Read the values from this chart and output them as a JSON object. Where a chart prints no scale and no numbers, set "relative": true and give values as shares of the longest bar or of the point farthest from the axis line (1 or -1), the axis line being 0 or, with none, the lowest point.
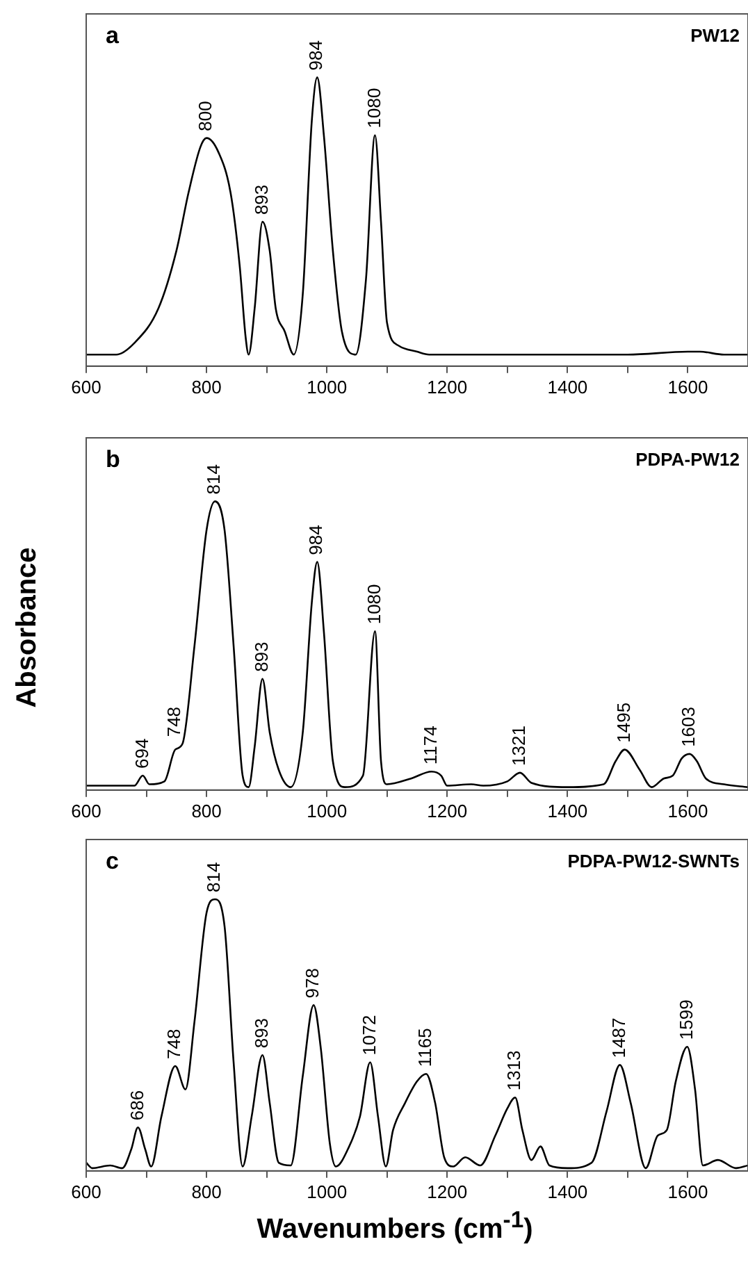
{
  "chart_data": [
    {
      "type": "line",
      "relative": true,
      "tick_labels": "x",
      "grid": false,
      "legend": false,
      "marker": "none",
      "line_style": "solid",
      "xlim": [
        600,
        1700
      ],
      "xticks": [
        600,
        {
          "value": 700,
          "label": null
        },
        800,
        {
          "value": 900,
          "label": null
        },
        1000,
        {
          "value": 1100,
          "label": null
        },
        1200,
        {
          "value": 1300,
          "label": null
        },
        1400,
        {
          "value": 1500,
          "label": null
        },
        1600
      ],
      "series": [
        {
          "color": "#000000",
          "x": [
            600,
            650,
            680,
            720,
            750,
            770,
            790,
            800,
            820,
            840,
            855,
            865,
            870,
            880,
            893,
            905,
            915,
            930,
            945,
            960,
            975,
            984,
            995,
            1010,
            1025,
            1048,
            1065,
            1080,
            1090,
            1100,
            1120,
            1150,
            1170,
            1500,
            1600,
            1620,
            1660,
            1700
          ],
          "values": [
            0.04,
            0.04,
            0.08,
            0.2,
            0.4,
            0.6,
            0.76,
            0.79,
            0.74,
            0.6,
            0.35,
            0.1,
            0.04,
            0.2,
            0.5,
            0.4,
            0.2,
            0.12,
            0.04,
            0.25,
            0.85,
            1,
            0.8,
            0.4,
            0.12,
            0.04,
            0.3,
            0.8,
            0.5,
            0.15,
            0.07,
            0.05,
            0.04,
            0.04,
            0.05,
            0.05,
            0.04,
            0.04
          ]
        }
      ],
      "annotations": [
        "a",
        "PW12",
        {
          "text": "800",
          "x": 800,
          "y": 0.79
        },
        {
          "text": "893",
          "x": 893,
          "y": 0.5
        },
        {
          "text": "984",
          "x": 984,
          "y": 1
        },
        {
          "text": "1080",
          "x": 1080,
          "y": 0.8
        }
      ]
    },
    {
      "type": "line",
      "relative": true,
      "tick_labels": "x",
      "grid": false,
      "legend": false,
      "marker": "none",
      "line_style": "solid",
      "ylabel": "Absorbance",
      "xlim": [
        600,
        1700
      ],
      "xticks": [
        600,
        {
          "value": 700,
          "label": null
        },
        800,
        {
          "value": 900,
          "label": null
        },
        1000,
        {
          "value": 1100,
          "label": null
        },
        1200,
        {
          "value": 1300,
          "label": null
        },
        1400,
        {
          "value": 1500,
          "label": null
        },
        1600
      ],
      "series": [
        {
          "color": "#000000",
          "x": [
            600,
            680,
            694,
            705,
            730,
            748,
            760,
            780,
            800,
            814,
            830,
            845,
            860,
            870,
            880,
            893,
            905,
            920,
            940,
            960,
            975,
            984,
            995,
            1010,
            1030,
            1060,
            1080,
            1090,
            1100,
            1140,
            1174,
            1190,
            1200,
            1240,
            1260,
            1300,
            1321,
            1340,
            1400,
            1460,
            1480,
            1495,
            1520,
            1540,
            1560,
            1575,
            1590,
            1603,
            1615,
            1630,
            1660,
            1700
          ],
          "values": [
            0.015,
            0.015,
            0.05,
            0.02,
            0.03,
            0.14,
            0.16,
            0.5,
            0.9,
            1,
            0.9,
            0.5,
            0.05,
            0.01,
            0.15,
            0.385,
            0.2,
            0.07,
            0.01,
            0.2,
            0.65,
            0.79,
            0.55,
            0.1,
            0.01,
            0.05,
            0.55,
            0.1,
            0.02,
            0.04,
            0.064,
            0.05,
            0.015,
            0.02,
            0.015,
            0.03,
            0.06,
            0.025,
            0.01,
            0.02,
            0.1,
            0.14,
            0.07,
            0.01,
            0.04,
            0.05,
            0.11,
            0.125,
            0.1,
            0.04,
            0.02,
            0.01
          ]
        }
      ],
      "annotations": [
        "b",
        "PDPA-PW12",
        {
          "text": "694",
          "x": 694,
          "y": 0.05
        },
        {
          "text": "748",
          "x": 748,
          "y": 0.16
        },
        {
          "text": "814",
          "x": 814,
          "y": 1
        },
        {
          "text": "893",
          "x": 893,
          "y": 0.385
        },
        {
          "text": "984",
          "x": 984,
          "y": 0.79
        },
        {
          "text": "1080",
          "x": 1080,
          "y": 0.55
        },
        {
          "text": "1174",
          "x": 1174,
          "y": 0.064
        },
        {
          "text": "1321",
          "x": 1321,
          "y": 0.06
        },
        {
          "text": "1495",
          "x": 1495,
          "y": 0.14
        },
        {
          "text": "1603",
          "x": 1603,
          "y": 0.125
        }
      ]
    },
    {
      "type": "line",
      "relative": true,
      "tick_labels": "x",
      "grid": false,
      "legend": false,
      "marker": "none",
      "line_style": "solid",
      "xlabel": "Wavenumbers (cm$^{-1}$)",
      "xlim": [
        600,
        1700
      ],
      "xticks": [
        600,
        {
          "value": 700,
          "label": null
        },
        800,
        {
          "value": 900,
          "label": null
        },
        1000,
        {
          "value": 1100,
          "label": null
        },
        1200,
        {
          "value": 1300,
          "label": null
        },
        1400,
        {
          "value": 1500,
          "label": null
        },
        1600
      ],
      "series": [
        {
          "color": "#000000",
          "x": [
            600,
            610,
            640,
            660,
            675,
            686,
            698,
            708,
            725,
            748,
            765,
            780,
            800,
            814,
            830,
            845,
            860,
            875,
            893,
            905,
            920,
            940,
            960,
            978,
            990,
            1005,
            1015,
            1035,
            1055,
            1072,
            1085,
            1098,
            1110,
            1130,
            1150,
            1165,
            1180,
            1195,
            1210,
            1230,
            1255,
            1280,
            1300,
            1313,
            1325,
            1340,
            1355,
            1370,
            1400,
            1440,
            1465,
            1487,
            1505,
            1530,
            1550,
            1565,
            1580,
            1599,
            1612,
            1625,
            1650,
            1680,
            1700
          ],
          "values": [
            0.03,
            0.01,
            0.02,
            0.01,
            0.08,
            0.16,
            0.08,
            0.016,
            0.2,
            0.386,
            0.3,
            0.55,
            0.95,
            1,
            0.9,
            0.4,
            0.016,
            0.2,
            0.426,
            0.25,
            0.03,
            0.02,
            0.35,
            0.61,
            0.45,
            0.1,
            0.016,
            0.08,
            0.2,
            0.4,
            0.2,
            0.016,
            0.15,
            0.25,
            0.33,
            0.357,
            0.25,
            0.05,
            0.016,
            0.05,
            0.02,
            0.13,
            0.23,
            0.27,
            0.15,
            0.04,
            0.09,
            0.02,
            0.01,
            0.03,
            0.22,
            0.39,
            0.25,
            0.01,
            0.13,
            0.15,
            0.33,
            0.457,
            0.3,
            0.02,
            0.04,
            0.01,
            0.02
          ]
        }
      ],
      "annotations": [
        "c",
        "PDPA-PW12-SWNTs",
        {
          "text": "686",
          "x": 686,
          "y": 0.16
        },
        {
          "text": "748",
          "x": 748,
          "y": 0.386
        },
        {
          "text": "814",
          "x": 814,
          "y": 1
        },
        {
          "text": "893",
          "x": 893,
          "y": 0.426
        },
        {
          "text": "978",
          "x": 978,
          "y": 0.61
        },
        {
          "text": "1072",
          "x": 1072,
          "y": 0.4
        },
        {
          "text": "1165",
          "x": 1165,
          "y": 0.357
        },
        {
          "text": "1313",
          "x": 1313,
          "y": 0.27
        },
        {
          "text": "1487",
          "x": 1487,
          "y": 0.39
        },
        {
          "text": "1599",
          "x": 1599,
          "y": 0.457
        }
      ]
    }
  ]
}
